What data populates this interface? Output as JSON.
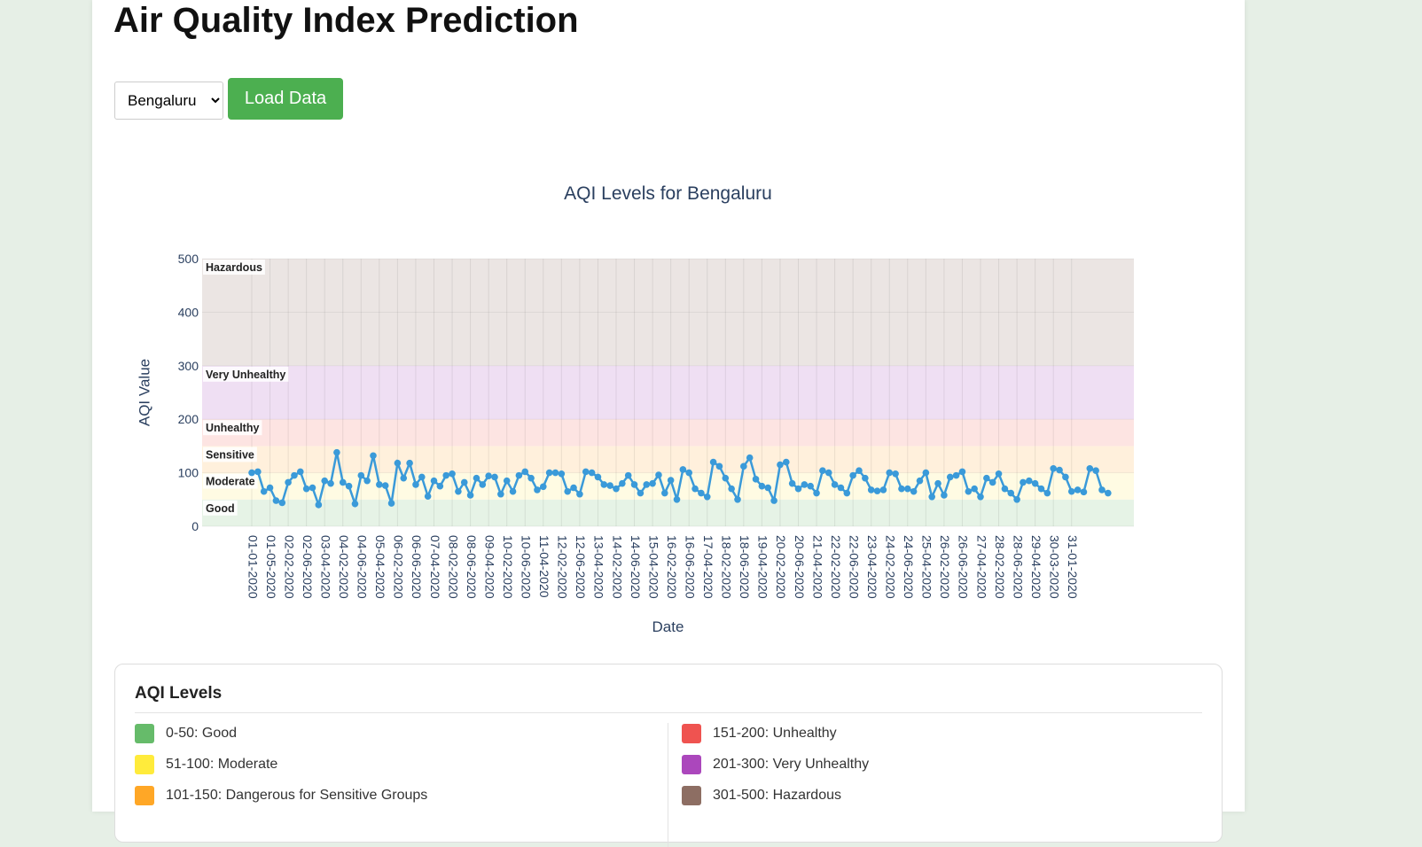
{
  "header": {
    "title": "Air Quality Index Prediction"
  },
  "controls": {
    "city": "Bengaluru",
    "button": "Load Data"
  },
  "chart_data": {
    "type": "line",
    "title": "AQI Levels for Bengaluru",
    "x_label": "Date",
    "y_label": "AQI Value",
    "color": "#3a9ad9",
    "ylim": [
      0,
      500
    ],
    "yticks": [
      0,
      100,
      200,
      300,
      400,
      500
    ],
    "grid": true,
    "bands": [
      {
        "name": "Good",
        "range": [
          0,
          50
        ],
        "color": "#e6f3e6"
      },
      {
        "name": "Moderate",
        "range": [
          50,
          100
        ],
        "color": "#fffbe3"
      },
      {
        "name": "Sensitive",
        "range": [
          100,
          150
        ],
        "color": "#fff0dc"
      },
      {
        "name": "Unhealthy",
        "range": [
          150,
          200
        ],
        "color": "#fde4e2"
      },
      {
        "name": "Very Unhealthy",
        "range": [
          200,
          300
        ],
        "color": "#efdff3"
      },
      {
        "name": "Hazardous",
        "range": [
          300,
          500
        ],
        "color": "#ebe5e3"
      }
    ],
    "categories": [
      "01-01-2020",
      null,
      null,
      "01-05-2020",
      null,
      null,
      "02-02-2020",
      null,
      null,
      "02-06-2020",
      null,
      null,
      "03-04-2020",
      null,
      null,
      "04-02-2020",
      null,
      null,
      "04-06-2020",
      null,
      null,
      "05-04-2020",
      null,
      null,
      "06-02-2020",
      null,
      null,
      "06-06-2020",
      null,
      null,
      "07-04-2020",
      null,
      null,
      "08-02-2020",
      null,
      null,
      "08-06-2020",
      null,
      null,
      "09-04-2020",
      null,
      null,
      "10-02-2020",
      null,
      null,
      "10-06-2020",
      null,
      null,
      "11-04-2020",
      null,
      null,
      "12-02-2020",
      null,
      null,
      "12-06-2020",
      null,
      null,
      "13-04-2020",
      null,
      null,
      "14-02-2020",
      null,
      null,
      "14-06-2020",
      null,
      null,
      "15-04-2020",
      null,
      null,
      "16-02-2020",
      null,
      null,
      "16-06-2020",
      null,
      null,
      "17-04-2020",
      null,
      null,
      "18-02-2020",
      null,
      null,
      "18-06-2020",
      null,
      null,
      "19-04-2020",
      null,
      null,
      "20-02-2020",
      null,
      null,
      "20-06-2020",
      null,
      null,
      "21-04-2020",
      null,
      null,
      "22-02-2020",
      null,
      null,
      "22-06-2020",
      null,
      null,
      "23-04-2020",
      null,
      null,
      "24-02-2020",
      null,
      null,
      "24-06-2020",
      null,
      null,
      "25-04-2020",
      null,
      null,
      "26-02-2020",
      null,
      null,
      "26-06-2020",
      null,
      null,
      "27-04-2020",
      null,
      null,
      "28-02-2020",
      null,
      null,
      "28-06-2020",
      null,
      null,
      "29-04-2020",
      null,
      null,
      "30-03-2020",
      null,
      null,
      "31-01-2020",
      null,
      null,
      null,
      null,
      null,
      null
    ],
    "values": [
      100,
      102,
      65,
      72,
      48,
      44,
      82,
      95,
      102,
      70,
      72,
      40,
      85,
      80,
      138,
      82,
      75,
      42,
      95,
      85,
      132,
      78,
      76,
      43,
      118,
      90,
      118,
      78,
      92,
      56,
      85,
      75,
      95,
      98,
      65,
      82,
      58,
      90,
      78,
      94,
      92,
      60,
      85,
      65,
      95,
      102,
      90,
      68,
      74,
      100,
      100,
      98,
      65,
      72,
      60,
      102,
      100,
      92,
      78,
      76,
      70,
      80,
      95,
      78,
      62,
      78,
      80,
      96,
      62,
      86,
      50,
      106,
      100,
      70,
      62,
      55,
      120,
      112,
      90,
      70,
      50,
      112,
      128,
      88,
      75,
      72,
      48,
      115,
      120,
      80,
      70,
      78,
      75,
      62,
      104,
      100,
      78,
      72,
      62,
      95,
      104,
      90,
      68,
      66,
      68,
      100,
      98,
      70,
      70,
      65,
      85,
      100,
      55,
      80,
      58,
      92,
      95,
      102,
      65,
      70,
      55,
      90,
      82,
      98,
      70,
      62,
      50,
      82,
      85,
      80,
      70,
      62,
      108,
      105,
      92,
      65,
      68,
      64,
      108,
      104,
      68,
      62
    ]
  },
  "legend": {
    "title": "AQI Levels",
    "items": [
      {
        "label": "0-50: Good",
        "color": "#66bb6a"
      },
      {
        "label": "51-100: Moderate",
        "color": "#ffeb3b"
      },
      {
        "label": "101-150: Dangerous for Sensitive Groups",
        "color": "#ffa726"
      },
      {
        "label": "151-200: Unhealthy",
        "color": "#ef5350"
      },
      {
        "label": "201-300: Very Unhealthy",
        "color": "#ab47bc"
      },
      {
        "label": "301-500: Hazardous",
        "color": "#8d6e63"
      }
    ]
  }
}
